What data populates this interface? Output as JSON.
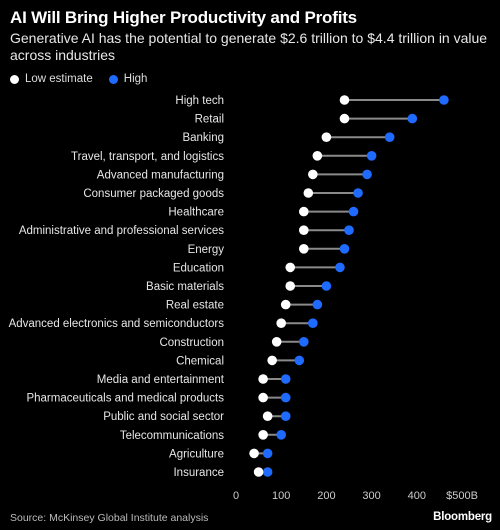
{
  "title": "AI Will Bring Higher Productivity and Profits",
  "subtitle": "Generative AI has the potential to generate $2.6 trillion to $4.4 trillion in value across industries",
  "colors": {
    "low": "#ffffff",
    "high": "#1f6bff",
    "line": "#8a8a8a",
    "background": "#000000"
  },
  "chart_data": {
    "type": "dumbbell",
    "legend": [
      "Low estimate",
      "High"
    ],
    "categories": [
      "High tech",
      "Retail",
      "Banking",
      "Travel, transport, and logistics",
      "Advanced manufacturing",
      "Consumer packaged goods",
      "Healthcare",
      "Administrative and professional services",
      "Energy",
      "Education",
      "Basic materials",
      "Real estate",
      "Advanced electronics and semiconductors",
      "Construction",
      "Chemical",
      "Media and entertainment",
      "Pharmaceuticals and medical products",
      "Public and social sector",
      "Telecommunications",
      "Agriculture",
      "Insurance"
    ],
    "series": [
      {
        "name": "Low estimate",
        "values": [
          240,
          240,
          200,
          180,
          170,
          160,
          150,
          150,
          150,
          120,
          120,
          110,
          100,
          90,
          80,
          60,
          60,
          70,
          60,
          40,
          50
        ]
      },
      {
        "name": "High",
        "values": [
          460,
          390,
          340,
          300,
          290,
          270,
          260,
          250,
          240,
          230,
          200,
          180,
          170,
          150,
          140,
          110,
          110,
          110,
          100,
          70,
          70
        ]
      }
    ],
    "xticks": [
      "0",
      "100",
      "200",
      "300",
      "400",
      "$500B"
    ],
    "xlim": [
      0,
      500
    ],
    "xlabel": "",
    "ylabel": ""
  },
  "footer": {
    "source": "Source: McKinsey Global Institute analysis",
    "brand": "Bloomberg"
  }
}
